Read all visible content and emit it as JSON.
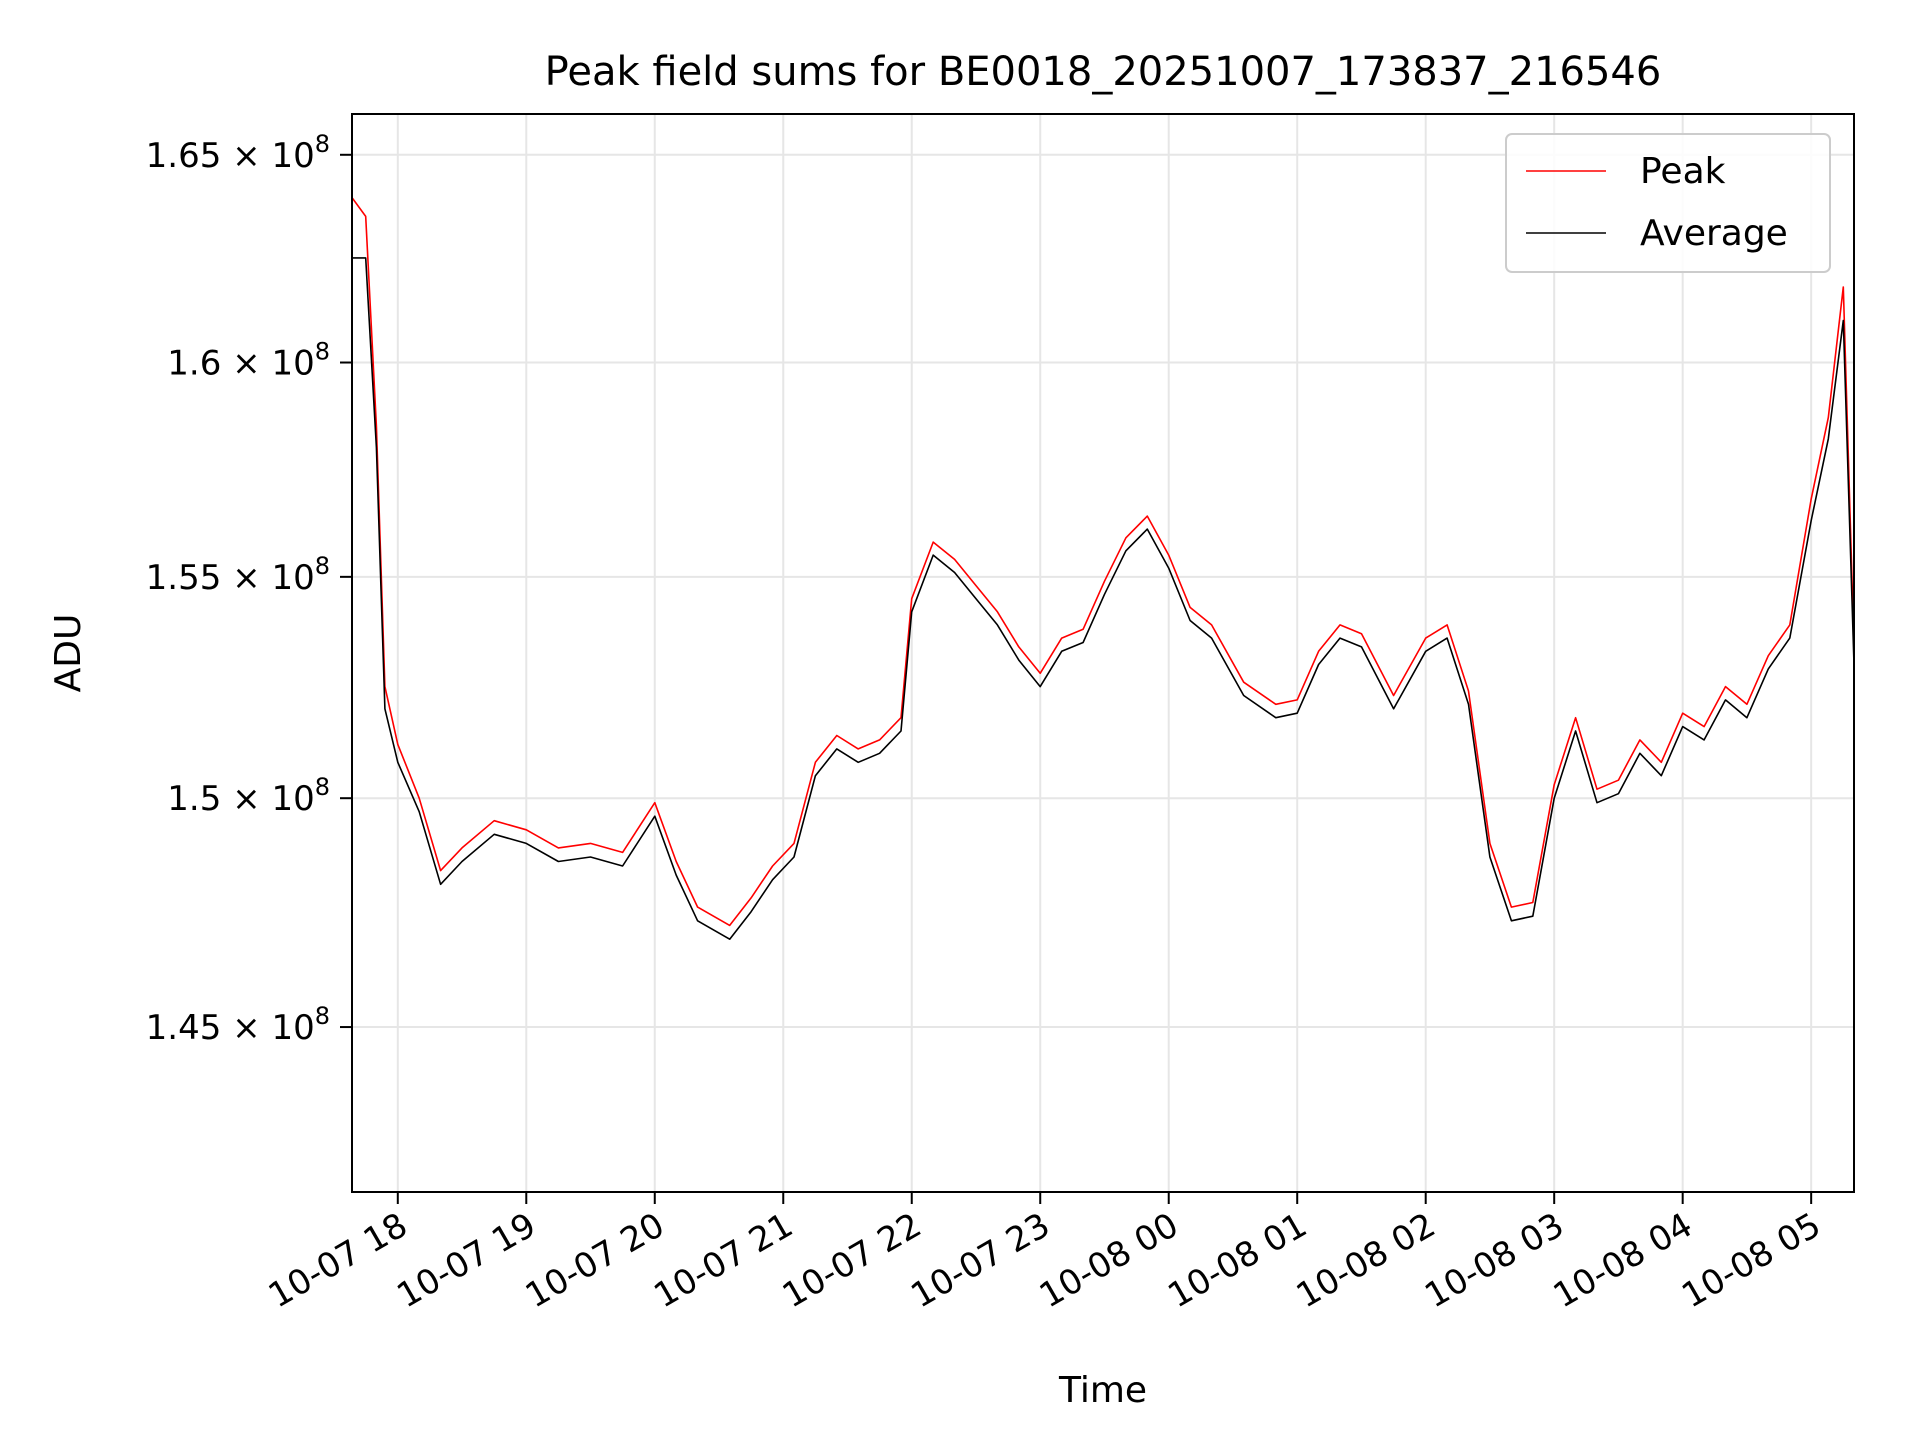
{
  "chart_data": {
    "type": "line",
    "title": "Peak field sums for BE0018_20251007_173837_216546",
    "xlabel": "Time",
    "ylabel": "ADU",
    "y_scale": "log",
    "ylim": [
      141500000,
      166000000
    ],
    "xlim": [
      "2025-10-07 17:38:37",
      "2025-10-08 05:20:00"
    ],
    "x_ticks": [
      {
        "value": "2025-10-07 18:00",
        "label": "10-07 18"
      },
      {
        "value": "2025-10-07 19:00",
        "label": "10-07 19"
      },
      {
        "value": "2025-10-07 20:00",
        "label": "10-07 20"
      },
      {
        "value": "2025-10-07 21:00",
        "label": "10-07 21"
      },
      {
        "value": "2025-10-07 22:00",
        "label": "10-07 22"
      },
      {
        "value": "2025-10-07 23:00",
        "label": "10-07 23"
      },
      {
        "value": "2025-10-08 00:00",
        "label": "10-08 00"
      },
      {
        "value": "2025-10-08 01:00",
        "label": "10-08 01"
      },
      {
        "value": "2025-10-08 02:00",
        "label": "10-08 02"
      },
      {
        "value": "2025-10-08 03:00",
        "label": "10-08 03"
      },
      {
        "value": "2025-10-08 04:00",
        "label": "10-08 04"
      },
      {
        "value": "2025-10-08 05:00",
        "label": "10-08 05"
      }
    ],
    "y_ticks": [
      {
        "value": 145000000,
        "label_base": "1.45 × 10",
        "label_exp": "8"
      },
      {
        "value": 150000000,
        "label_base": "1.5 × 10",
        "label_exp": "8"
      },
      {
        "value": 155000000,
        "label_base": "1.55 × 10",
        "label_exp": "8"
      },
      {
        "value": 160000000,
        "label_base": "1.6 × 10",
        "label_exp": "8"
      },
      {
        "value": 165000000,
        "label_base": "1.65 × 10",
        "label_exp": "8"
      }
    ],
    "grid": true,
    "legend": {
      "placement": "upper-right"
    },
    "series": [
      {
        "name": "Peak",
        "color": "#ff0000",
        "x": [
          "2025-10-07 17:38",
          "2025-10-07 17:45",
          "2025-10-07 17:50",
          "2025-10-07 17:54",
          "2025-10-07 18:00",
          "2025-10-07 18:10",
          "2025-10-07 18:20",
          "2025-10-07 18:30",
          "2025-10-07 18:45",
          "2025-10-07 19:00",
          "2025-10-07 19:15",
          "2025-10-07 19:30",
          "2025-10-07 19:45",
          "2025-10-07 20:00",
          "2025-10-07 20:10",
          "2025-10-07 20:20",
          "2025-10-07 20:35",
          "2025-10-07 20:45",
          "2025-10-07 20:55",
          "2025-10-07 21:05",
          "2025-10-07 21:15",
          "2025-10-07 21:25",
          "2025-10-07 21:35",
          "2025-10-07 21:45",
          "2025-10-07 21:55",
          "2025-10-07 22:00",
          "2025-10-07 22:10",
          "2025-10-07 22:20",
          "2025-10-07 22:30",
          "2025-10-07 22:40",
          "2025-10-07 22:50",
          "2025-10-07 23:00",
          "2025-10-07 23:10",
          "2025-10-07 23:20",
          "2025-10-07 23:30",
          "2025-10-07 23:40",
          "2025-10-07 23:50",
          "2025-10-08 00:00",
          "2025-10-08 00:10",
          "2025-10-08 00:20",
          "2025-10-08 00:35",
          "2025-10-08 00:50",
          "2025-10-08 01:00",
          "2025-10-08 01:10",
          "2025-10-08 01:20",
          "2025-10-08 01:30",
          "2025-10-08 01:45",
          "2025-10-08 02:00",
          "2025-10-08 02:10",
          "2025-10-08 02:20",
          "2025-10-08 02:30",
          "2025-10-08 02:40",
          "2025-10-08 02:50",
          "2025-10-08 03:00",
          "2025-10-08 03:10",
          "2025-10-08 03:20",
          "2025-10-08 03:30",
          "2025-10-08 03:40",
          "2025-10-08 03:50",
          "2025-10-08 04:00",
          "2025-10-08 04:10",
          "2025-10-08 04:20",
          "2025-10-08 04:30",
          "2025-10-08 04:40",
          "2025-10-08 04:50",
          "2025-10-08 05:00",
          "2025-10-08 05:08",
          "2025-10-08 05:15",
          "2025-10-08 05:20"
        ],
        "values": [
          164000000,
          163500000,
          158500000,
          152500000,
          151200000,
          150000000,
          148400000,
          148900000,
          149500000,
          149300000,
          148900000,
          149000000,
          148800000,
          149900000,
          148600000,
          147600000,
          147200000,
          147800000,
          148500000,
          149000000,
          150800000,
          151400000,
          151100000,
          151300000,
          151800000,
          154500000,
          155800000,
          155400000,
          154800000,
          154200000,
          153400000,
          152800000,
          153600000,
          153800000,
          154900000,
          155900000,
          156400000,
          155500000,
          154300000,
          153900000,
          152600000,
          152100000,
          152200000,
          153300000,
          153900000,
          153700000,
          152300000,
          153600000,
          153900000,
          152400000,
          149000000,
          147600000,
          147700000,
          150300000,
          151800000,
          150200000,
          150400000,
          151300000,
          150800000,
          151900000,
          151600000,
          152500000,
          152100000,
          153200000,
          153900000,
          156800000,
          158700000,
          161800000,
          153400000
        ]
      },
      {
        "name": "Average",
        "color": "#000000",
        "x": [
          "2025-10-07 17:38",
          "2025-10-07 17:45",
          "2025-10-07 17:50",
          "2025-10-07 17:54",
          "2025-10-07 18:00",
          "2025-10-07 18:10",
          "2025-10-07 18:20",
          "2025-10-07 18:30",
          "2025-10-07 18:45",
          "2025-10-07 19:00",
          "2025-10-07 19:15",
          "2025-10-07 19:30",
          "2025-10-07 19:45",
          "2025-10-07 20:00",
          "2025-10-07 20:10",
          "2025-10-07 20:20",
          "2025-10-07 20:35",
          "2025-10-07 20:45",
          "2025-10-07 20:55",
          "2025-10-07 21:05",
          "2025-10-07 21:15",
          "2025-10-07 21:25",
          "2025-10-07 21:35",
          "2025-10-07 21:45",
          "2025-10-07 21:55",
          "2025-10-07 22:00",
          "2025-10-07 22:10",
          "2025-10-07 22:20",
          "2025-10-07 22:30",
          "2025-10-07 22:40",
          "2025-10-07 22:50",
          "2025-10-07 23:00",
          "2025-10-07 23:10",
          "2025-10-07 23:20",
          "2025-10-07 23:30",
          "2025-10-07 23:40",
          "2025-10-07 23:50",
          "2025-10-08 00:00",
          "2025-10-08 00:10",
          "2025-10-08 00:20",
          "2025-10-08 00:35",
          "2025-10-08 00:50",
          "2025-10-08 01:00",
          "2025-10-08 01:10",
          "2025-10-08 01:20",
          "2025-10-08 01:30",
          "2025-10-08 01:45",
          "2025-10-08 02:00",
          "2025-10-08 02:10",
          "2025-10-08 02:20",
          "2025-10-08 02:30",
          "2025-10-08 02:40",
          "2025-10-08 02:50",
          "2025-10-08 03:00",
          "2025-10-08 03:10",
          "2025-10-08 03:20",
          "2025-10-08 03:30",
          "2025-10-08 03:40",
          "2025-10-08 03:50",
          "2025-10-08 04:00",
          "2025-10-08 04:10",
          "2025-10-08 04:20",
          "2025-10-08 04:30",
          "2025-10-08 04:40",
          "2025-10-08 04:50",
          "2025-10-08 05:00",
          "2025-10-08 05:08",
          "2025-10-08 05:15",
          "2025-10-08 05:20"
        ],
        "values": [
          162500000,
          162500000,
          158000000,
          152000000,
          150800000,
          149700000,
          148100000,
          148600000,
          149200000,
          149000000,
          148600000,
          148700000,
          148500000,
          149600000,
          148300000,
          147300000,
          146900000,
          147500000,
          148200000,
          148700000,
          150500000,
          151100000,
          150800000,
          151000000,
          151500000,
          154200000,
          155500000,
          155100000,
          154500000,
          153900000,
          153100000,
          152500000,
          153300000,
          153500000,
          154600000,
          155600000,
          156100000,
          155200000,
          154000000,
          153600000,
          152300000,
          151800000,
          151900000,
          153000000,
          153600000,
          153400000,
          152000000,
          153300000,
          153600000,
          152100000,
          148700000,
          147300000,
          147400000,
          150000000,
          151500000,
          149900000,
          150100000,
          151000000,
          150500000,
          151600000,
          151300000,
          152200000,
          151800000,
          152900000,
          153600000,
          156300000,
          158200000,
          161000000,
          153000000
        ]
      }
    ]
  }
}
